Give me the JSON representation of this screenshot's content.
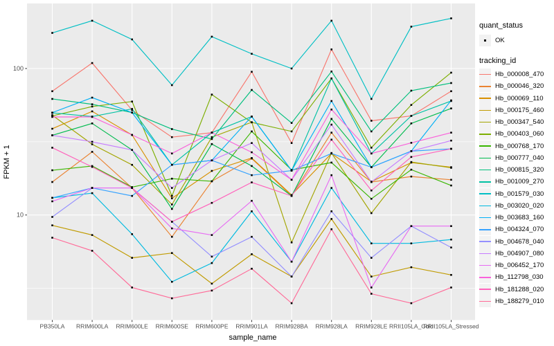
{
  "figure": {
    "background": "#FFFFFF",
    "panel_background": "#EBEBEB",
    "grid_color": "#FFFFFF",
    "axis_text_color": "#4D4D4D",
    "axis_title_color": "#000000",
    "tick_mark_color": "#333333",
    "point_color": "#000000",
    "legend_key_background": "#F2F2F2"
  },
  "legend": {
    "quant_status_title": "quant_status",
    "quant_status_items": [
      {
        "label": "OK",
        "icon": "point-icon"
      }
    ],
    "tracking_id_title": "tracking_id"
  },
  "chart_data": {
    "type": "line",
    "title": "",
    "xlabel": "sample_name",
    "ylabel": "FPKM + 1",
    "y_scale": "log10",
    "y_breaks": [
      100,
      10
    ],
    "y_minor_breaks": [
      31.623,
      3.162
    ],
    "ylim": [
      1.9,
      280
    ],
    "grid": true,
    "legend_position": "right",
    "point_shape": "square",
    "quant_status": "OK",
    "categories": [
      "PB350LA",
      "RRIM600LA",
      "RRIM600LE",
      "RRIM600SE",
      "RRIM600PE",
      "RRIM901LA",
      "RRIM928BA",
      "RRIM928LA",
      "RRIM928LE",
      "RRII105LA_Cold",
      "RRII105LA_Stressed"
    ],
    "series": [
      {
        "name": "Hb_000008_470",
        "color": "#F8766D",
        "values": [
          70,
          109,
          52,
          34,
          36.5,
          95,
          31,
          135,
          44,
          47.5,
          70
        ]
      },
      {
        "name": "Hb_000046_320",
        "color": "#EA8331",
        "values": [
          16.8,
          27,
          15.3,
          7.1,
          17,
          24.3,
          13.5,
          36.5,
          16.8,
          18.3,
          17.4
        ]
      },
      {
        "name": "Hb_000069_110",
        "color": "#D89000",
        "values": [
          38.8,
          51,
          35.2,
          13,
          20,
          24.5,
          13.7,
          26.3,
          16.9,
          22.8,
          21.2
        ]
      },
      {
        "name": "Hb_000175_460",
        "color": "#C09B00",
        "values": [
          8.5,
          7.3,
          5.1,
          5.5,
          3.4,
          5.4,
          3.8,
          9.4,
          3.8,
          4.4,
          3.9
        ]
      },
      {
        "name": "Hb_000347_540",
        "color": "#A3A500",
        "values": [
          48,
          30.4,
          22,
          11.8,
          34,
          43,
          6.5,
          26.5,
          10.3,
          23,
          21
        ]
      },
      {
        "name": "Hb_000403_060",
        "color": "#7CAE00",
        "values": [
          47.5,
          55,
          59.5,
          13.5,
          66.4,
          42.9,
          37.2,
          85.6,
          28.8,
          56.4,
          93.7
        ]
      },
      {
        "name": "Hb_000768_170",
        "color": "#39B600",
        "values": [
          20.2,
          21.6,
          15.5,
          17.7,
          17,
          37.2,
          20.3,
          22.8,
          12.9,
          20.4,
          15.9
        ]
      },
      {
        "name": "Hb_000777_040",
        "color": "#00BB4E",
        "values": [
          35,
          42.2,
          27.8,
          11,
          30.5,
          21.6,
          13.5,
          45.3,
          21.2,
          42.2,
          53.4
        ]
      },
      {
        "name": "Hb_000815_320",
        "color": "#00BF7D",
        "values": [
          62,
          57,
          50,
          38.6,
          33,
          71.4,
          42.5,
          95.4,
          37.2,
          70.6,
          79.6
        ]
      },
      {
        "name": "Hb_001009_270",
        "color": "#00C1A3",
        "values": [
          49.8,
          47,
          53,
          22,
          36.5,
          47,
          20.1,
          85.6,
          26.3,
          47.5,
          60
        ]
      },
      {
        "name": "Hb_001579_030",
        "color": "#00BFC4",
        "values": [
          175,
          212,
          158,
          77,
          165,
          126,
          100,
          212,
          62,
          193,
          220
        ]
      },
      {
        "name": "Hb_003020_020",
        "color": "#00BAE0",
        "values": [
          13.1,
          14.1,
          7.4,
          3.5,
          4.7,
          10.6,
          4.8,
          15.3,
          6.4,
          6.4,
          6.8
        ]
      },
      {
        "name": "Hb_003683_160",
        "color": "#00B0F6",
        "values": [
          50,
          63.3,
          50,
          22,
          23.6,
          47,
          20.1,
          60,
          21.2,
          27.3,
          60.6
        ]
      },
      {
        "name": "Hb_004324_070",
        "color": "#35A2FF",
        "values": [
          13.1,
          15.3,
          13.5,
          22,
          23.6,
          18.7,
          20.1,
          26.3,
          21.2,
          27.3,
          28.3
        ]
      },
      {
        "name": "Hb_004678_040",
        "color": "#9590FF",
        "values": [
          9.7,
          15.3,
          15.3,
          9,
          5.2,
          7.1,
          3.8,
          10.6,
          5.1,
          8.4,
          6
        ]
      },
      {
        "name": "Hb_004907_080",
        "color": "#C77CFF",
        "values": [
          35,
          31.6,
          27.8,
          15.3,
          23.6,
          31,
          17.4,
          41.4,
          16.8,
          27.3,
          32.2
        ]
      },
      {
        "name": "Hb_006452_170",
        "color": "#E76BF3",
        "values": [
          12.4,
          15.3,
          15.3,
          8.1,
          7.3,
          12.5,
          4.8,
          18.7,
          3.2,
          8.4,
          8.4
        ]
      },
      {
        "name": "Hb_112798_030",
        "color": "#FA62DB",
        "values": [
          46.7,
          46.7,
          35.2,
          26.3,
          36.5,
          26.8,
          17.4,
          52.5,
          26.3,
          31.1,
          36.5
        ]
      },
      {
        "name": "Hb_181288_020",
        "color": "#FF62BC",
        "values": [
          28.8,
          21.3,
          15.3,
          9,
          12.1,
          16.7,
          13.5,
          32.7,
          14.7,
          24.9,
          28.3
        ]
      },
      {
        "name": "Hb_188279_010",
        "color": "#FF6A98",
        "values": [
          7,
          5.7,
          3.2,
          2.7,
          3.05,
          4.3,
          2.5,
          8,
          2.9,
          2.5,
          3.2
        ]
      }
    ]
  }
}
